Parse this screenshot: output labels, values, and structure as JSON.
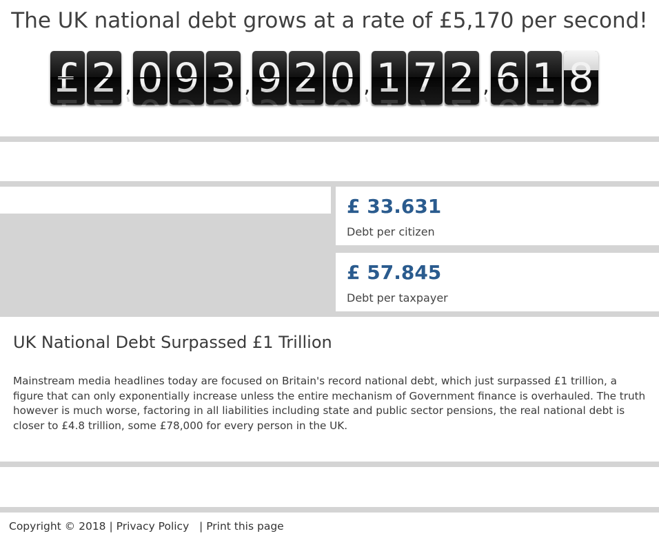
{
  "header": {
    "title": "The UK national debt grows at a rate of £5,170 per second!"
  },
  "debt_counter": {
    "currency": "£",
    "groups": [
      "2",
      "093",
      "920",
      "172",
      "618"
    ],
    "separator": ",",
    "flipping_digit_index": 12
  },
  "stats": [
    {
      "value": "£ 33.631",
      "label": "Debt per citizen"
    },
    {
      "value": "£ 57.845",
      "label": "Debt per taxpayer"
    }
  ],
  "article": {
    "title": "UK National Debt Surpassed £1 Trillion",
    "body": "Mainstream media headlines today are focused on Britain's record national debt, which just surpassed £1 trillion, a figure that can only exponentially increase unless the entire mechanism of Government finance is overhauled. The truth however is much worse, factoring in all liabilities including state and public sector pensions, the real national debt is closer to £4.8 trillion, some £78,000 for every person in the UK."
  },
  "footer": {
    "copyright": "Copyright © 2018",
    "privacy_label": "Privacy Policy",
    "print_label": "Print this page"
  },
  "colors": {
    "accent": "#2a5b8e",
    "band": "#d4d4d4",
    "card": "#111111"
  }
}
